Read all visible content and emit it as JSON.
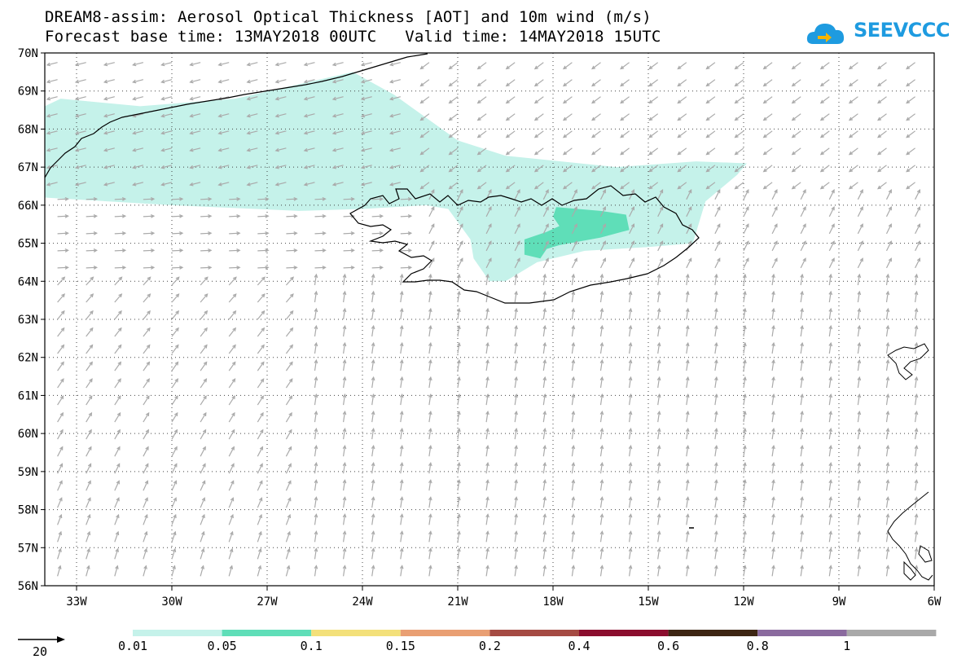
{
  "title": {
    "line1": "DREAM8-assim: Aerosol Optical Thickness [AOT] and 10m wind (m/s)",
    "line2": "Forecast base time: 13MAY2018 00UTC   Valid time: 14MAY2018 15UTC"
  },
  "logo": {
    "text": "SEEVCCC",
    "icon": "cloud-logo-icon",
    "color": "#1e9be0"
  },
  "map": {
    "lon_range": [
      -34.0,
      -6.0
    ],
    "lat_range": [
      56.0,
      70.0
    ],
    "lon_ticks": [
      {
        "value": -33,
        "label": "33W"
      },
      {
        "value": -30,
        "label": "30W"
      },
      {
        "value": -27,
        "label": "27W"
      },
      {
        "value": -24,
        "label": "24W"
      },
      {
        "value": -21,
        "label": "21W"
      },
      {
        "value": -18,
        "label": "18W"
      },
      {
        "value": -15,
        "label": "15W"
      },
      {
        "value": -12,
        "label": "12W"
      },
      {
        "value": -9,
        "label": "9W"
      },
      {
        "value": -6,
        "label": "6W"
      }
    ],
    "lat_ticks": [
      {
        "value": 70,
        "label": "70N"
      },
      {
        "value": 69,
        "label": "69N"
      },
      {
        "value": 68,
        "label": "68N"
      },
      {
        "value": 67,
        "label": "67N"
      },
      {
        "value": 66,
        "label": "66N"
      },
      {
        "value": 65,
        "label": "65N"
      },
      {
        "value": 64,
        "label": "64N"
      },
      {
        "value": 63,
        "label": "63N"
      },
      {
        "value": 62,
        "label": "62N"
      },
      {
        "value": 61,
        "label": "61N"
      },
      {
        "value": 60,
        "label": "60N"
      },
      {
        "value": 59,
        "label": "59N"
      },
      {
        "value": 58,
        "label": "58N"
      },
      {
        "value": 57,
        "label": "57N"
      },
      {
        "value": 56,
        "label": "56N"
      }
    ],
    "aot_plume_main": [
      [
        -34.0,
        68.6
      ],
      [
        -33.5,
        68.8
      ],
      [
        -31.0,
        68.6
      ],
      [
        -28.0,
        68.8
      ],
      [
        -24.3,
        69.5
      ],
      [
        -23.0,
        68.9
      ],
      [
        -21.0,
        67.7
      ],
      [
        -19.5,
        67.3
      ],
      [
        -16.0,
        67.0
      ],
      [
        -13.5,
        67.15
      ],
      [
        -11.9,
        67.1
      ],
      [
        -12.2,
        66.8
      ],
      [
        -13.2,
        66.1
      ],
      [
        -13.6,
        65.0
      ],
      [
        -15.0,
        64.9
      ],
      [
        -17.0,
        64.8
      ],
      [
        -18.5,
        64.5
      ],
      [
        -19.5,
        64.0
      ],
      [
        -20.0,
        64.0
      ],
      [
        -20.5,
        64.6
      ],
      [
        -20.6,
        65.1
      ],
      [
        -21.3,
        65.9
      ],
      [
        -22.0,
        66.0
      ],
      [
        -24.0,
        65.9
      ],
      [
        -26.0,
        65.85
      ],
      [
        -30.0,
        66.0
      ],
      [
        -34.0,
        66.2
      ]
    ],
    "aot_plume_core": [
      [
        -17.9,
        65.95
      ],
      [
        -16.5,
        65.85
      ],
      [
        -15.7,
        65.75
      ],
      [
        -15.6,
        65.35
      ],
      [
        -16.5,
        65.15
      ],
      [
        -17.8,
        64.95
      ],
      [
        -18.2,
        64.85
      ],
      [
        -18.4,
        64.6
      ],
      [
        -18.9,
        64.7
      ],
      [
        -18.9,
        65.1
      ],
      [
        -18.2,
        65.3
      ],
      [
        -17.8,
        65.45
      ],
      [
        -18.0,
        65.7
      ]
    ],
    "aot_plume_colors": {
      "main": "#c5f2ea",
      "core": "#5fdeb8"
    },
    "wind_sample_note": "arrows indicate 10m wind direction",
    "wind_scale_label": "20",
    "contour_color": "#000000",
    "arrow_color": "#aaaaaa"
  },
  "colorbar": {
    "bins": [
      {
        "color": "#c5f2ea"
      },
      {
        "color": "#5fdeb8"
      },
      {
        "color": "#f3e07a"
      },
      {
        "color": "#e99f73"
      },
      {
        "color": "#a54b43"
      },
      {
        "color": "#8b0d2e"
      },
      {
        "color": "#3d2613"
      },
      {
        "color": "#8a6a9e"
      },
      {
        "color": "#a9a9a9"
      }
    ],
    "labels": [
      "0.01",
      "0.05",
      "0.1",
      "0.15",
      "0.2",
      "0.4",
      "0.6",
      "0.8",
      "1"
    ]
  }
}
